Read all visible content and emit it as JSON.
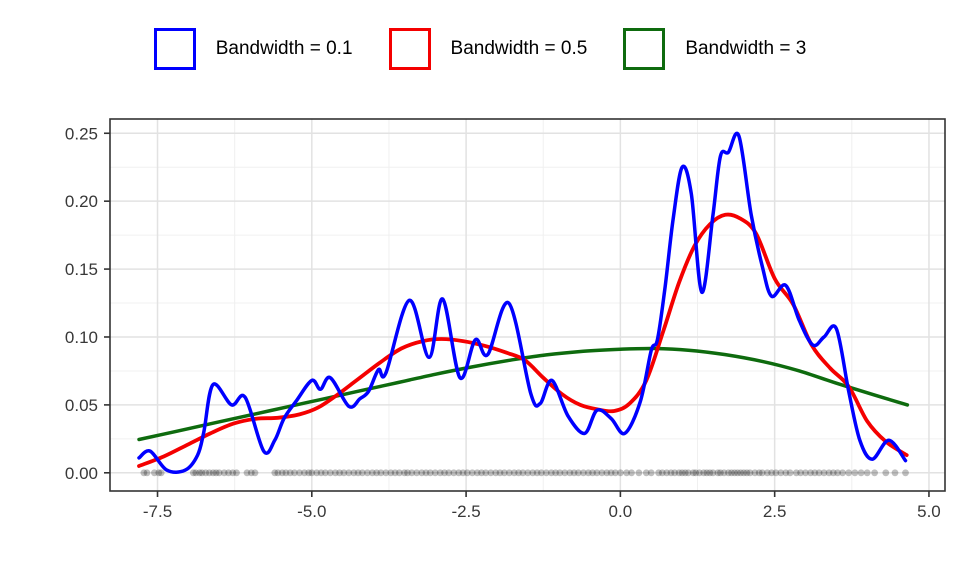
{
  "legend": {
    "items": [
      {
        "label": "Bandwidth = 0.1",
        "color": "#0000FF"
      },
      {
        "label": "Bandwidth = 0.5",
        "color": "#F40000"
      },
      {
        "label": "Bandwidth = 3",
        "color": "#0E6B0E"
      }
    ]
  },
  "chart_data": {
    "type": "line",
    "title": "",
    "xlabel": "",
    "ylabel": "",
    "legend_position": "top",
    "grid": "on",
    "panel": {
      "l": 110,
      "t": 119,
      "r": 945,
      "b": 491
    },
    "xlim": [
      -8.27,
      5.26
    ],
    "ylim": [
      -0.0134,
      0.2605
    ],
    "x_ticks": [
      -7.5,
      -5.0,
      -2.5,
      0.0,
      2.5,
      5.0
    ],
    "x_tick_labels": [
      "-7.5",
      "-5.0",
      "-2.5",
      "0.0",
      "2.5",
      "5.0"
    ],
    "x_minor": [
      -6.25,
      -3.75,
      -1.25,
      1.25,
      3.75
    ],
    "y_ticks": [
      0.0,
      0.05,
      0.1,
      0.15,
      0.2,
      0.25
    ],
    "y_tick_labels": [
      "0.00",
      "0.05",
      "0.10",
      "0.15",
      "0.20",
      "0.25"
    ],
    "y_minor": [
      0.025,
      0.075,
      0.125,
      0.175,
      0.225
    ],
    "style": {
      "major_grid": "#E2E2E2",
      "minor_grid": "#F0F0F0",
      "border": "#333333",
      "tick": "#333333",
      "text": "#383838",
      "tick_font_px": 17,
      "tick_len": 6
    },
    "series": [
      {
        "name": "Bandwidth = 3",
        "color": "#0E6B0E",
        "width": 3.5,
        "points": [
          [
            -7.8,
            0.0245
          ],
          [
            -7.2,
            0.0305
          ],
          [
            -6.6,
            0.0365
          ],
          [
            -6.0,
            0.0425
          ],
          [
            -5.4,
            0.0485
          ],
          [
            -4.8,
            0.0545
          ],
          [
            -4.2,
            0.0605
          ],
          [
            -3.6,
            0.0665
          ],
          [
            -3.0,
            0.0725
          ],
          [
            -2.4,
            0.078
          ],
          [
            -1.8,
            0.0828
          ],
          [
            -1.2,
            0.0868
          ],
          [
            -0.6,
            0.0895
          ],
          [
            0.0,
            0.091
          ],
          [
            0.55,
            0.0915
          ],
          [
            1.1,
            0.0903
          ],
          [
            1.7,
            0.087
          ],
          [
            2.3,
            0.082
          ],
          [
            2.9,
            0.075
          ],
          [
            3.5,
            0.066
          ],
          [
            4.1,
            0.0575
          ],
          [
            4.65,
            0.05
          ]
        ]
      },
      {
        "name": "Bandwidth = 0.5",
        "color": "#F40000",
        "width": 3.8,
        "points": [
          [
            -7.8,
            0.005
          ],
          [
            -7.4,
            0.012
          ],
          [
            -7.0,
            0.021
          ],
          [
            -6.6,
            0.03
          ],
          [
            -6.25,
            0.0365
          ],
          [
            -5.9,
            0.0398
          ],
          [
            -5.55,
            0.0405
          ],
          [
            -5.2,
            0.043
          ],
          [
            -4.9,
            0.048
          ],
          [
            -4.6,
            0.057
          ],
          [
            -4.25,
            0.069
          ],
          [
            -3.9,
            0.081
          ],
          [
            -3.55,
            0.0915
          ],
          [
            -3.2,
            0.097
          ],
          [
            -2.9,
            0.0985
          ],
          [
            -2.55,
            0.097
          ],
          [
            -2.2,
            0.0935
          ],
          [
            -1.85,
            0.0885
          ],
          [
            -1.55,
            0.083
          ],
          [
            -1.25,
            0.07
          ],
          [
            -0.95,
            0.058
          ],
          [
            -0.65,
            0.05
          ],
          [
            -0.35,
            0.0465
          ],
          [
            -0.1,
            0.0455
          ],
          [
            0.15,
            0.051
          ],
          [
            0.42,
            0.068
          ],
          [
            0.7,
            0.105
          ],
          [
            0.95,
            0.14
          ],
          [
            1.2,
            0.167
          ],
          [
            1.45,
            0.183
          ],
          [
            1.7,
            0.19
          ],
          [
            1.95,
            0.187
          ],
          [
            2.2,
            0.176
          ],
          [
            2.5,
            0.143
          ],
          [
            2.8,
            0.124
          ],
          [
            3.1,
            0.094
          ],
          [
            3.4,
            0.077
          ],
          [
            3.7,
            0.0635
          ],
          [
            4.0,
            0.038
          ],
          [
            4.3,
            0.023
          ],
          [
            4.64,
            0.013
          ]
        ]
      },
      {
        "name": "Bandwidth = 0.1",
        "color": "#0000FF",
        "width": 3.5,
        "points": [
          [
            -7.8,
            0.011
          ],
          [
            -7.62,
            0.016
          ],
          [
            -7.35,
            0.002
          ],
          [
            -7.05,
            0.002
          ],
          [
            -6.85,
            0.013
          ],
          [
            -6.75,
            0.03
          ],
          [
            -6.6,
            0.065
          ],
          [
            -6.3,
            0.05
          ],
          [
            -6.08,
            0.0555
          ],
          [
            -5.78,
            0.016
          ],
          [
            -5.6,
            0.024
          ],
          [
            -5.45,
            0.04
          ],
          [
            -5.25,
            0.053
          ],
          [
            -5.0,
            0.068
          ],
          [
            -4.86,
            0.0615
          ],
          [
            -4.7,
            0.07
          ],
          [
            -4.4,
            0.049
          ],
          [
            -4.22,
            0.0545
          ],
          [
            -4.08,
            0.06
          ],
          [
            -3.92,
            0.076
          ],
          [
            -3.8,
            0.0735
          ],
          [
            -3.42,
            0.127
          ],
          [
            -3.1,
            0.085
          ],
          [
            -2.88,
            0.128
          ],
          [
            -2.6,
            0.07
          ],
          [
            -2.35,
            0.098
          ],
          [
            -2.15,
            0.087
          ],
          [
            -1.81,
            0.125
          ],
          [
            -1.45,
            0.058
          ],
          [
            -1.3,
            0.051
          ],
          [
            -1.11,
            0.068
          ],
          [
            -0.85,
            0.042
          ],
          [
            -0.58,
            0.029
          ],
          [
            -0.38,
            0.046
          ],
          [
            -0.15,
            0.04
          ],
          [
            0.07,
            0.029
          ],
          [
            0.32,
            0.052
          ],
          [
            0.5,
            0.09
          ],
          [
            0.6,
            0.098
          ],
          [
            0.72,
            0.135
          ],
          [
            0.85,
            0.185
          ],
          [
            1.0,
            0.225
          ],
          [
            1.15,
            0.205
          ],
          [
            1.32,
            0.133
          ],
          [
            1.5,
            0.19
          ],
          [
            1.62,
            0.233
          ],
          [
            1.75,
            0.236
          ],
          [
            1.92,
            0.248
          ],
          [
            2.12,
            0.19
          ],
          [
            2.3,
            0.152
          ],
          [
            2.45,
            0.13
          ],
          [
            2.68,
            0.138
          ],
          [
            2.9,
            0.112
          ],
          [
            3.12,
            0.094
          ],
          [
            3.3,
            0.1
          ],
          [
            3.5,
            0.106
          ],
          [
            3.7,
            0.06
          ],
          [
            3.88,
            0.024
          ],
          [
            4.08,
            0.01
          ],
          [
            4.35,
            0.024
          ],
          [
            4.62,
            0.009
          ]
        ]
      }
    ],
    "rug": {
      "r": 3.4,
      "color": "#000000",
      "opacity": 0.25,
      "y": 0.0,
      "x": [
        -7.72,
        -7.67,
        -7.55,
        -7.48,
        -7.44,
        -6.92,
        -6.88,
        -6.82,
        -6.78,
        -6.72,
        -6.66,
        -6.6,
        -6.55,
        -6.5,
        -6.42,
        -6.35,
        -6.28,
        -6.22,
        -6.05,
        -5.98,
        -5.92,
        -5.6,
        -5.55,
        -5.48,
        -5.42,
        -5.35,
        -5.28,
        -5.2,
        -5.12,
        -5.05,
        -5.0,
        -4.92,
        -4.85,
        -4.78,
        -4.7,
        -4.62,
        -4.55,
        -4.48,
        -4.4,
        -4.32,
        -4.25,
        -4.18,
        -4.1,
        -4.02,
        -3.95,
        -3.88,
        -3.8,
        -3.72,
        -3.65,
        -3.58,
        -3.5,
        -3.45,
        -3.38,
        -3.3,
        -3.22,
        -3.15,
        -3.08,
        -3.0,
        -2.92,
        -2.85,
        -2.78,
        -2.7,
        -2.62,
        -2.55,
        -2.48,
        -2.4,
        -2.32,
        -2.25,
        -2.18,
        -2.1,
        -2.02,
        -1.95,
        -1.88,
        -1.8,
        -1.72,
        -1.65,
        -1.58,
        -1.5,
        -1.42,
        -1.35,
        -1.28,
        -1.2,
        -1.12,
        -1.05,
        -0.98,
        -0.9,
        -0.82,
        -0.75,
        -0.68,
        -0.6,
        -0.52,
        -0.45,
        -0.38,
        -0.3,
        -0.22,
        -0.15,
        -0.08,
        0.0,
        0.1,
        0.18,
        0.3,
        0.42,
        0.5,
        0.62,
        0.68,
        0.75,
        0.82,
        0.88,
        0.95,
        1.0,
        1.05,
        1.1,
        1.18,
        1.22,
        1.28,
        1.35,
        1.4,
        1.45,
        1.5,
        1.58,
        1.62,
        1.68,
        1.75,
        1.8,
        1.85,
        1.9,
        1.95,
        2.0,
        2.05,
        2.1,
        2.18,
        2.25,
        2.3,
        2.38,
        2.45,
        2.52,
        2.6,
        2.68,
        2.75,
        2.85,
        2.92,
        3.0,
        3.08,
        3.15,
        3.22,
        3.3,
        3.38,
        3.45,
        3.52,
        3.6,
        3.7,
        3.8,
        3.9,
        4.0,
        4.12,
        4.3,
        4.45,
        4.62
      ]
    }
  }
}
